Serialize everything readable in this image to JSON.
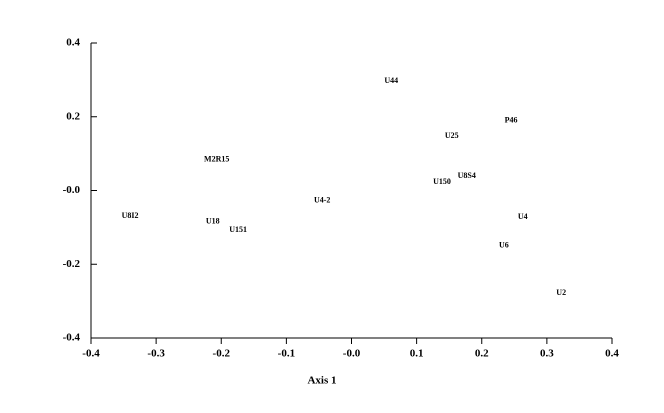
{
  "chart_data": {
    "type": "scatter",
    "x_label": "Axis 1",
    "points": [
      {
        "label": "U44",
        "x": 0.061,
        "y": 0.297
      },
      {
        "label": "P46",
        "x": 0.245,
        "y": 0.19
      },
      {
        "label": "U25",
        "x": 0.154,
        "y": 0.148
      },
      {
        "label": "M2R15",
        "x": -0.207,
        "y": 0.083
      },
      {
        "label": "U8S4",
        "x": 0.177,
        "y": 0.039
      },
      {
        "label": "U150",
        "x": 0.139,
        "y": 0.022
      },
      {
        "label": "U4-2",
        "x": -0.045,
        "y": -0.028
      },
      {
        "label": "U4",
        "x": 0.263,
        "y": -0.072
      },
      {
        "label": "U6",
        "x": 0.234,
        "y": -0.15
      },
      {
        "label": "U2",
        "x": 0.322,
        "y": -0.278
      },
      {
        "label": "U8I2",
        "x": -0.34,
        "y": -0.069
      },
      {
        "label": "U18",
        "x": -0.213,
        "y": -0.085
      },
      {
        "label": "U151",
        "x": -0.174,
        "y": -0.107
      }
    ],
    "xlim": [
      -0.4,
      0.4
    ],
    "xticks": [
      -0.4,
      -0.3,
      -0.2,
      -0.1,
      {
        "value": 0,
        "label": "-0.0"
      },
      0.1,
      0.2,
      0.3,
      0.4
    ],
    "ylim": [
      -0.4,
      0.4
    ],
    "yticks": [
      -0.4,
      -0.2,
      {
        "value": 0,
        "label": "-0.0"
      },
      0.2,
      0.4
    ]
  }
}
